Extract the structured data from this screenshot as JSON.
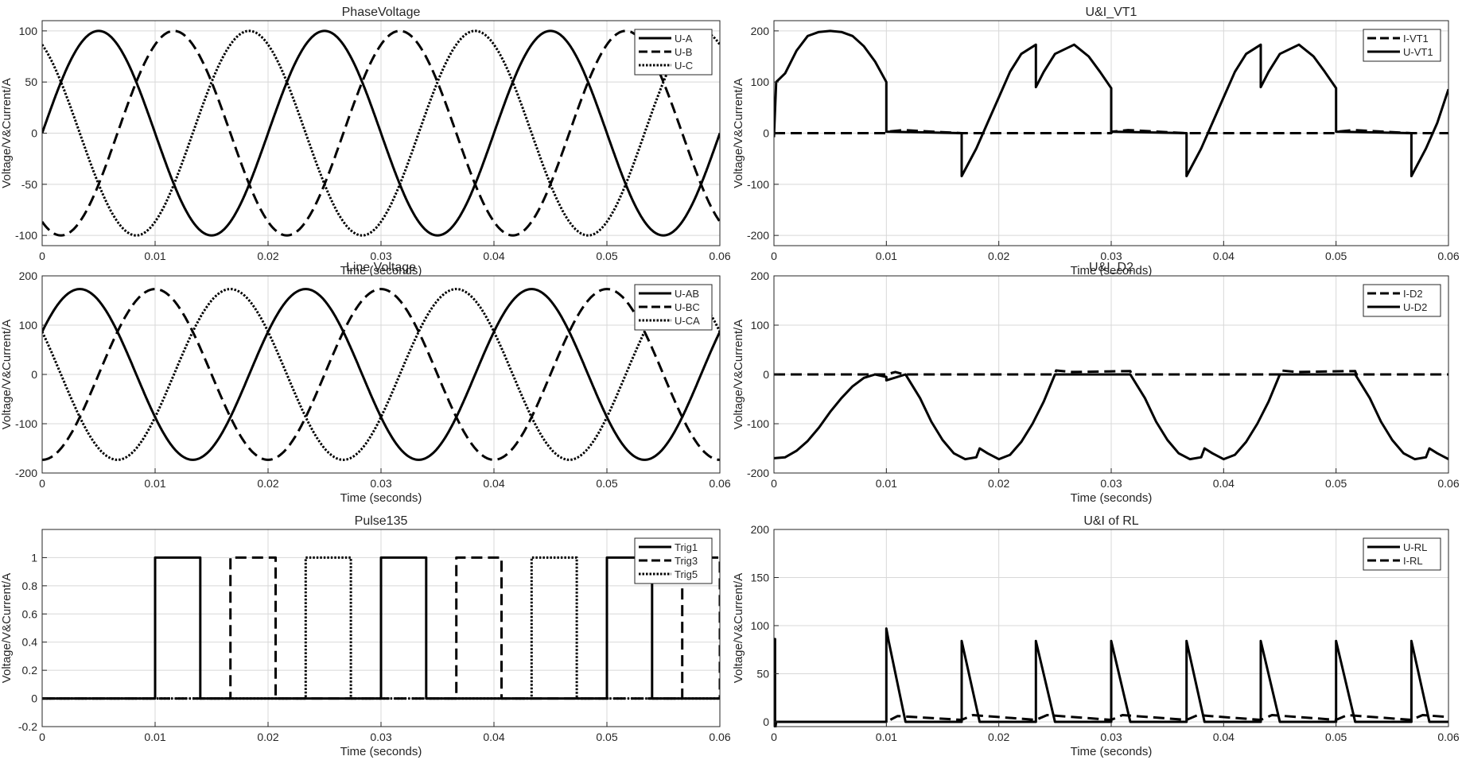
{
  "figure": {
    "background": "#ffffff",
    "line_color": "#000000",
    "grid_color": "#d8d8d8",
    "text_color": "#262626"
  },
  "chart_data": [
    {
      "type": "line",
      "title": "PhaseVoltage",
      "xlabel": "Time (seconds)",
      "ylabel": "Voltage/V&Current/A",
      "xlim": [
        0,
        0.06
      ],
      "ylim": [
        -110,
        110
      ],
      "xticks": [
        0,
        0.01,
        0.02,
        0.03,
        0.04,
        0.05,
        0.06
      ],
      "xtick_labels": [
        "0",
        "0.01",
        "0.02",
        "0.03",
        "0.04",
        "0.05",
        "0.06"
      ],
      "yticks": [
        -100,
        -50,
        0,
        50,
        100
      ],
      "ytick_labels": [
        "-100",
        "-50",
        "0",
        "50",
        "100"
      ],
      "grid": true,
      "legend_position": "top-right",
      "series": [
        {
          "name": "U-A",
          "style": "solid",
          "kind": "sine",
          "amplitude": 100,
          "frequency": 50,
          "phase_deg": 0
        },
        {
          "name": "U-B",
          "style": "dashed",
          "kind": "sine",
          "amplitude": 100,
          "frequency": 50,
          "phase_deg": -120
        },
        {
          "name": "U-C",
          "style": "dotted",
          "kind": "sine",
          "amplitude": 100,
          "frequency": 50,
          "phase_deg": 120
        }
      ]
    },
    {
      "type": "line",
      "title": "U&I_VT1",
      "xlabel": "Time (seconds)",
      "ylabel": "Voltage/V&Current/A",
      "xlim": [
        0,
        0.06
      ],
      "ylim": [
        -220,
        220
      ],
      "xticks": [
        0,
        0.01,
        0.02,
        0.03,
        0.04,
        0.05,
        0.06
      ],
      "xtick_labels": [
        "0",
        "0.01",
        "0.02",
        "0.03",
        "0.04",
        "0.05",
        "0.06"
      ],
      "yticks": [
        -200,
        -100,
        0,
        100,
        200
      ],
      "ytick_labels": [
        "-200",
        "-100",
        "0",
        "100",
        "200"
      ],
      "grid": true,
      "legend_position": "top-right",
      "series": [
        {
          "name": "I-VT1",
          "style": "dashed",
          "kind": "points",
          "x": [
            0,
            0.01,
            0.0101,
            0.0115,
            0.0167,
            0.03,
            0.0301,
            0.0315,
            0.0367,
            0.05,
            0.0501,
            0.0515,
            0.0567,
            0.06
          ],
          "y": [
            0,
            0,
            3,
            6,
            0,
            0,
            3,
            6,
            0,
            0,
            3,
            6,
            0,
            0
          ]
        },
        {
          "name": "U-VT1",
          "style": "solid",
          "kind": "points",
          "x": [
            0,
            0.0002,
            0.001,
            0.002,
            0.003,
            0.004,
            0.005,
            0.006,
            0.007,
            0.008,
            0.009,
            0.01,
            0.01,
            0.0167,
            0.0167,
            0.018,
            0.019,
            0.02,
            0.021,
            0.022,
            0.0233,
            0.0233,
            0.024,
            0.025,
            0.0267,
            0.028,
            0.029,
            0.03,
            0.03,
            0.0367,
            0.0367,
            0.038,
            0.039,
            0.04,
            0.041,
            0.042,
            0.0433,
            0.0433,
            0.044,
            0.045,
            0.0467,
            0.048,
            0.049,
            0.05,
            0.05,
            0.0567,
            0.0567,
            0.058,
            0.059,
            0.06
          ],
          "y": [
            -8,
            100,
            117,
            161,
            190,
            198,
            200,
            198,
            190,
            170,
            140,
            100,
            3,
            0,
            -84,
            -30,
            20,
            70,
            120,
            155,
            173,
            90,
            120,
            155,
            173,
            150,
            120,
            88,
            3,
            0,
            -84,
            -30,
            20,
            70,
            120,
            155,
            173,
            90,
            120,
            155,
            173,
            150,
            120,
            88,
            3,
            0,
            -84,
            -30,
            20,
            86
          ]
        }
      ]
    },
    {
      "type": "line",
      "title": "Line Voltage",
      "xlabel": "Time (seconds)",
      "ylabel": "Voltage/V&Current/A",
      "xlim": [
        0,
        0.06
      ],
      "ylim": [
        -200,
        200
      ],
      "xticks": [
        0,
        0.01,
        0.02,
        0.03,
        0.04,
        0.05,
        0.06
      ],
      "xtick_labels": [
        "0",
        "0.01",
        "0.02",
        "0.03",
        "0.04",
        "0.05",
        "0.06"
      ],
      "yticks": [
        -200,
        -100,
        0,
        100,
        200
      ],
      "ytick_labels": [
        "-200",
        "-100",
        "0",
        "100",
        "200"
      ],
      "grid": true,
      "legend_position": "top-right",
      "series": [
        {
          "name": "U-AB",
          "style": "solid",
          "kind": "sine",
          "amplitude": 173.2,
          "frequency": 50,
          "phase_deg": 30
        },
        {
          "name": "U-BC",
          "style": "dashed",
          "kind": "sine",
          "amplitude": 173.2,
          "frequency": 50,
          "phase_deg": -90
        },
        {
          "name": "U-CA",
          "style": "dotted",
          "kind": "sine",
          "amplitude": 173.2,
          "frequency": 50,
          "phase_deg": 150
        }
      ]
    },
    {
      "type": "line",
      "title": "U&I_D2",
      "xlabel": "Time (seconds)",
      "ylabel": "Voltage/V&Current/A",
      "xlim": [
        0,
        0.06
      ],
      "ylim": [
        -200,
        200
      ],
      "xticks": [
        0,
        0.01,
        0.02,
        0.03,
        0.04,
        0.05,
        0.06
      ],
      "xtick_labels": [
        "0",
        "0.01",
        "0.02",
        "0.03",
        "0.04",
        "0.05",
        "0.06"
      ],
      "yticks": [
        -200,
        -100,
        0,
        100,
        200
      ],
      "ytick_labels": [
        "-200",
        "-100",
        "0",
        "100",
        "200"
      ],
      "grid": true,
      "legend_position": "top-right",
      "series": [
        {
          "name": "I-D2",
          "style": "dashed",
          "kind": "points",
          "x": [
            0,
            0.01,
            0.0108,
            0.0116,
            0.025,
            0.0251,
            0.0265,
            0.0317,
            0.0318,
            0.045,
            0.0451,
            0.0465,
            0.0517,
            0.0518,
            0.06
          ],
          "y": [
            0,
            0,
            5,
            0,
            0,
            8,
            5,
            7,
            0,
            0,
            8,
            5,
            7,
            0,
            0
          ]
        },
        {
          "name": "U-D2",
          "style": "solid",
          "kind": "points",
          "x": [
            0,
            0.001,
            0.002,
            0.003,
            0.004,
            0.005,
            0.006,
            0.007,
            0.008,
            0.009,
            0.01,
            0.01,
            0.0117,
            0.0117,
            0.013,
            0.014,
            0.015,
            0.016,
            0.017,
            0.018,
            0.0183,
            0.019,
            0.02,
            0.021,
            0.022,
            0.023,
            0.024,
            0.025,
            0.0317,
            0.033,
            0.034,
            0.035,
            0.036,
            0.037,
            0.038,
            0.0383,
            0.039,
            0.04,
            0.041,
            0.042,
            0.043,
            0.044,
            0.045,
            0.0517,
            0.053,
            0.054,
            0.055,
            0.056,
            0.057,
            0.058,
            0.0583,
            0.059,
            0.06
          ],
          "y": [
            -170,
            -168,
            -155,
            -135,
            -108,
            -76,
            -48,
            -24,
            -7,
            0,
            -5,
            -12,
            0,
            0,
            -48,
            -96,
            -133,
            -160,
            -172,
            -168,
            -150,
            -160,
            -172,
            -163,
            -137,
            -100,
            -55,
            0,
            0,
            -48,
            -96,
            -133,
            -160,
            -172,
            -168,
            -150,
            -160,
            -172,
            -163,
            -137,
            -100,
            -55,
            0,
            0,
            -48,
            -96,
            -133,
            -160,
            -172,
            -168,
            -150,
            -160,
            -172
          ]
        }
      ]
    },
    {
      "type": "line",
      "title": "Pulse135",
      "xlabel": "Time (seconds)",
      "ylabel": "Voltage/V&Current/A",
      "xlim": [
        0,
        0.06
      ],
      "ylim": [
        -0.2,
        1.2
      ],
      "xticks": [
        0,
        0.01,
        0.02,
        0.03,
        0.04,
        0.05,
        0.06
      ],
      "xtick_labels": [
        "0",
        "0.01",
        "0.02",
        "0.03",
        "0.04",
        "0.05",
        "0.06"
      ],
      "yticks": [
        -0.2,
        0,
        0.2,
        0.4,
        0.6,
        0.8,
        1
      ],
      "ytick_labels": [
        "-0.2",
        "0",
        "0.2",
        "0.4",
        "0.6",
        "0.8",
        "1"
      ],
      "grid": true,
      "legend_position": "top-right",
      "series": [
        {
          "name": "Trig1",
          "style": "solid",
          "kind": "pulses",
          "period": 0.02,
          "start": 0.01,
          "width": 0.004
        },
        {
          "name": "Trig3",
          "style": "dashed",
          "kind": "pulses",
          "period": 0.02,
          "start": 0.01667,
          "width": 0.004
        },
        {
          "name": "Trig5",
          "style": "dotted",
          "kind": "pulses",
          "period": 0.02,
          "start": 0.02333,
          "width": 0.004
        }
      ]
    },
    {
      "type": "line",
      "title": "U&I of RL",
      "xlabel": "Time (seconds)",
      "ylabel": "Voltage/V&Current/A",
      "xlim": [
        0,
        0.06
      ],
      "ylim": [
        -5,
        200
      ],
      "xticks": [
        0,
        0.01,
        0.02,
        0.03,
        0.04,
        0.05,
        0.06
      ],
      "xtick_labels": [
        "0",
        "0.01",
        "0.02",
        "0.03",
        "0.04",
        "0.05",
        "0.06"
      ],
      "yticks": [
        0,
        50,
        100,
        150,
        200
      ],
      "ytick_labels": [
        "0",
        "50",
        "100",
        "150",
        "200"
      ],
      "grid": true,
      "legend_position": "top-right",
      "series": [
        {
          "name": "U-RL",
          "style": "solid",
          "kind": "points",
          "x": [
            0,
            0.0001,
            0.0001,
            0.0002,
            0.01,
            0.01,
            0.0102,
            0.0117,
            0.015,
            0.0167,
            0.0167,
            0.0183,
            0.0217,
            0.0233,
            0.0233,
            0.025,
            0.0283,
            0.03,
            0.03,
            0.0317,
            0.035,
            0.0367,
            0.0367,
            0.0383,
            0.0417,
            0.0433,
            0.0433,
            0.045,
            0.0483,
            0.05,
            0.05,
            0.0517,
            0.055,
            0.0567,
            0.0567,
            0.0583,
            0.06
          ],
          "y": [
            86,
            86,
            -8,
            0,
            0,
            97,
            84,
            0,
            0,
            0,
            84,
            0,
            0,
            0,
            84,
            0,
            0,
            0,
            84,
            0,
            0,
            0,
            84,
            0,
            0,
            0,
            84,
            0,
            0,
            0,
            84,
            0,
            0,
            0,
            84,
            0,
            0
          ]
        },
        {
          "name": "I-RL",
          "style": "dashed",
          "kind": "points",
          "x": [
            0,
            0.01,
            0.011,
            0.0167,
            0.0177,
            0.0233,
            0.0243,
            0.03,
            0.031,
            0.0367,
            0.0377,
            0.0433,
            0.0443,
            0.05,
            0.051,
            0.0567,
            0.0577,
            0.06
          ],
          "y": [
            0,
            0,
            6,
            2,
            7,
            2,
            7,
            2,
            7,
            2,
            7,
            2,
            7,
            2,
            7,
            2,
            7,
            5
          ]
        }
      ]
    }
  ]
}
